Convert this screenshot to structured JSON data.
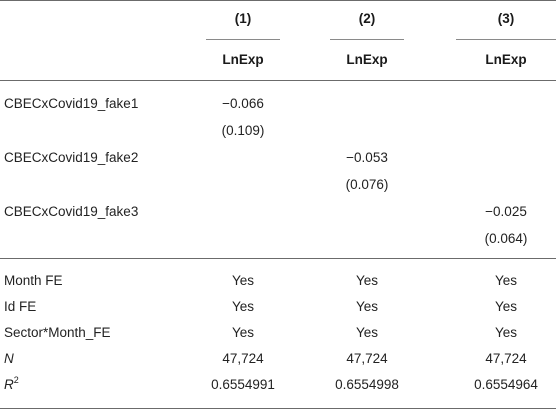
{
  "table": {
    "model_numbers": [
      "(1)",
      "(2)",
      "(3)"
    ],
    "dependent_vars": [
      "LnExp",
      "LnExp",
      "LnExp"
    ],
    "coefficient_rows": [
      {
        "label": "CBECxCovid19_fake1",
        "estimate": "−0.066",
        "se": "(0.109)",
        "column": 1
      },
      {
        "label": "CBECxCovid19_fake2",
        "estimate": "−0.053",
        "se": "(0.076)",
        "column": 2
      },
      {
        "label": "CBECxCovid19_fake3",
        "estimate": "−0.025",
        "se": "(0.064)",
        "column": 3
      }
    ],
    "stat_rows": [
      {
        "label": "Month FE",
        "values": [
          "Yes",
          "Yes",
          "Yes"
        ]
      },
      {
        "label": "Id FE",
        "values": [
          "Yes",
          "Yes",
          "Yes"
        ]
      },
      {
        "label": "Sector*Month_FE",
        "values": [
          "Yes",
          "Yes",
          "Yes"
        ]
      },
      {
        "label": "N",
        "values": [
          "47,724",
          "47,724",
          "47,724"
        ]
      },
      {
        "label_base": "R",
        "label_sup": "2",
        "values": [
          "0.6554991",
          "0.6554998",
          "0.6554964"
        ]
      }
    ]
  }
}
